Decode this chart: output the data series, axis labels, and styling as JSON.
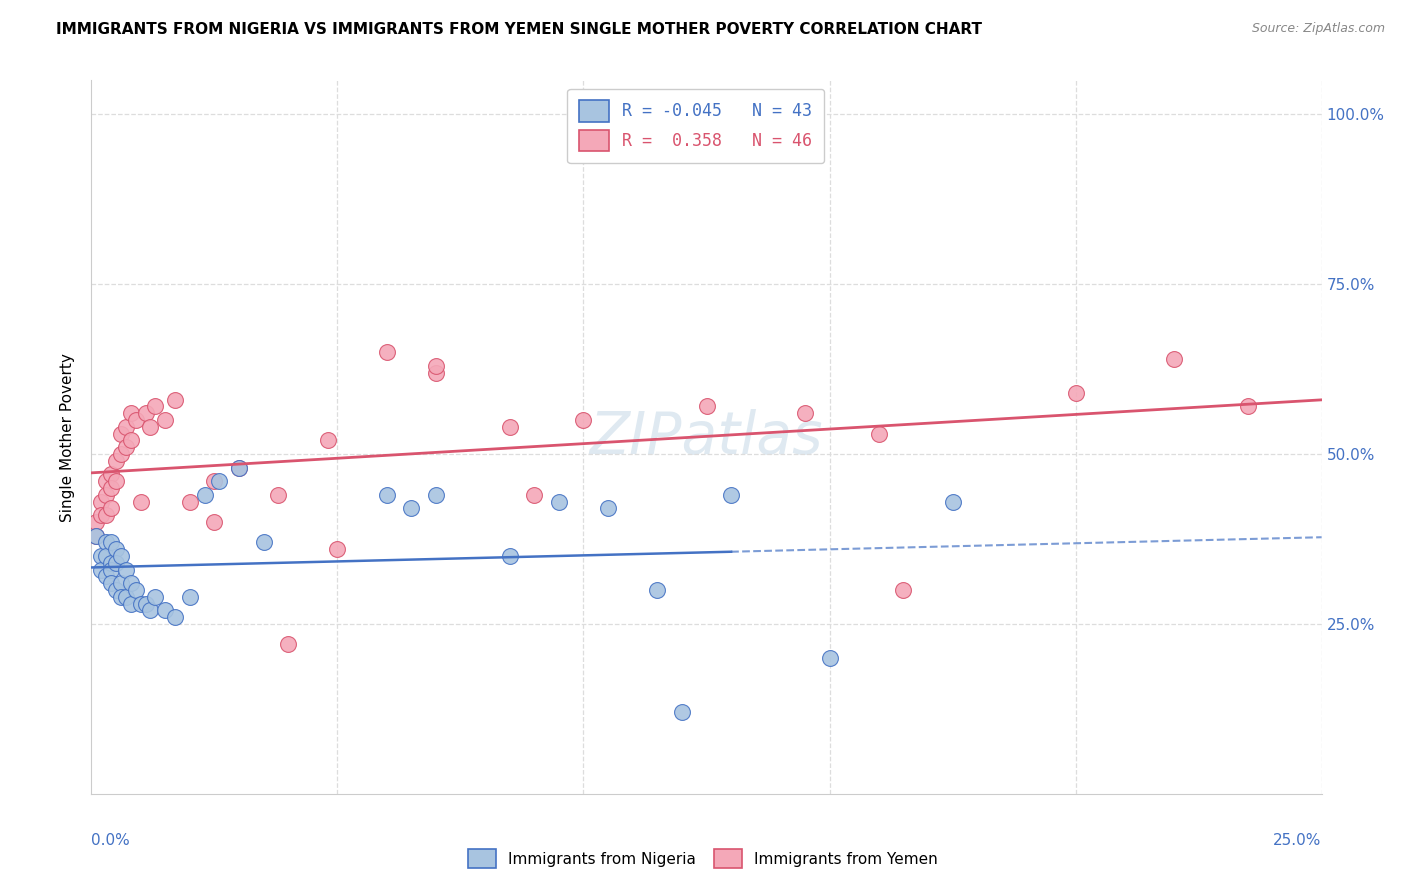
{
  "title": "IMMIGRANTS FROM NIGERIA VS IMMIGRANTS FROM YEMEN SINGLE MOTHER POVERTY CORRELATION CHART",
  "source": "Source: ZipAtlas.com",
  "ylabel": "Single Mother Poverty",
  "nigeria_color": "#a8c4e0",
  "yemen_color": "#f4a8b8",
  "nigeria_line_color": "#4472c4",
  "yemen_line_color": "#d9546e",
  "watermark": "ZIPatlas",
  "nigeria_x": [
    0.001,
    0.002,
    0.002,
    0.003,
    0.003,
    0.003,
    0.004,
    0.004,
    0.004,
    0.004,
    0.005,
    0.005,
    0.005,
    0.006,
    0.006,
    0.006,
    0.007,
    0.007,
    0.008,
    0.008,
    0.009,
    0.01,
    0.011,
    0.012,
    0.013,
    0.015,
    0.017,
    0.02,
    0.023,
    0.026,
    0.03,
    0.035,
    0.06,
    0.065,
    0.07,
    0.085,
    0.095,
    0.105,
    0.115,
    0.13,
    0.15,
    0.175,
    0.12
  ],
  "nigeria_y": [
    0.38,
    0.35,
    0.33,
    0.37,
    0.35,
    0.32,
    0.37,
    0.34,
    0.33,
    0.31,
    0.36,
    0.34,
    0.3,
    0.35,
    0.31,
    0.29,
    0.33,
    0.29,
    0.31,
    0.28,
    0.3,
    0.28,
    0.28,
    0.27,
    0.29,
    0.27,
    0.26,
    0.29,
    0.44,
    0.46,
    0.48,
    0.37,
    0.44,
    0.42,
    0.44,
    0.35,
    0.43,
    0.42,
    0.3,
    0.44,
    0.2,
    0.43,
    0.12
  ],
  "yemen_x": [
    0.001,
    0.001,
    0.002,
    0.002,
    0.003,
    0.003,
    0.003,
    0.004,
    0.004,
    0.004,
    0.005,
    0.005,
    0.006,
    0.006,
    0.007,
    0.007,
    0.008,
    0.008,
    0.009,
    0.01,
    0.011,
    0.012,
    0.013,
    0.015,
    0.017,
    0.02,
    0.025,
    0.03,
    0.038,
    0.048,
    0.06,
    0.07,
    0.085,
    0.1,
    0.125,
    0.145,
    0.165,
    0.2,
    0.22,
    0.235,
    0.09,
    0.05,
    0.04,
    0.025,
    0.16,
    0.07
  ],
  "yemen_y": [
    0.4,
    0.38,
    0.43,
    0.41,
    0.46,
    0.44,
    0.41,
    0.47,
    0.45,
    0.42,
    0.49,
    0.46,
    0.53,
    0.5,
    0.54,
    0.51,
    0.56,
    0.52,
    0.55,
    0.43,
    0.56,
    0.54,
    0.57,
    0.55,
    0.58,
    0.43,
    0.46,
    0.48,
    0.44,
    0.52,
    0.65,
    0.62,
    0.54,
    0.55,
    0.57,
    0.56,
    0.3,
    0.59,
    0.64,
    0.57,
    0.44,
    0.36,
    0.22,
    0.4,
    0.53,
    0.63
  ],
  "xlim": [
    0.0,
    0.25
  ],
  "ylim": [
    0.0,
    1.05
  ],
  "xticks": [
    0.0,
    0.05,
    0.1,
    0.15,
    0.2,
    0.25
  ],
  "yticks": [
    0.25,
    0.5,
    0.75,
    1.0
  ],
  "yticklabels": [
    "25.0%",
    "50.0%",
    "75.0%",
    "100.0%"
  ],
  "legend_labels": [
    "R = -0.045   N = 43",
    "R =  0.358   N = 46"
  ],
  "bottom_legend": [
    "Immigrants from Nigeria",
    "Immigrants from Yemen"
  ],
  "grid_color": "#dddddd",
  "spine_color": "#cccccc"
}
